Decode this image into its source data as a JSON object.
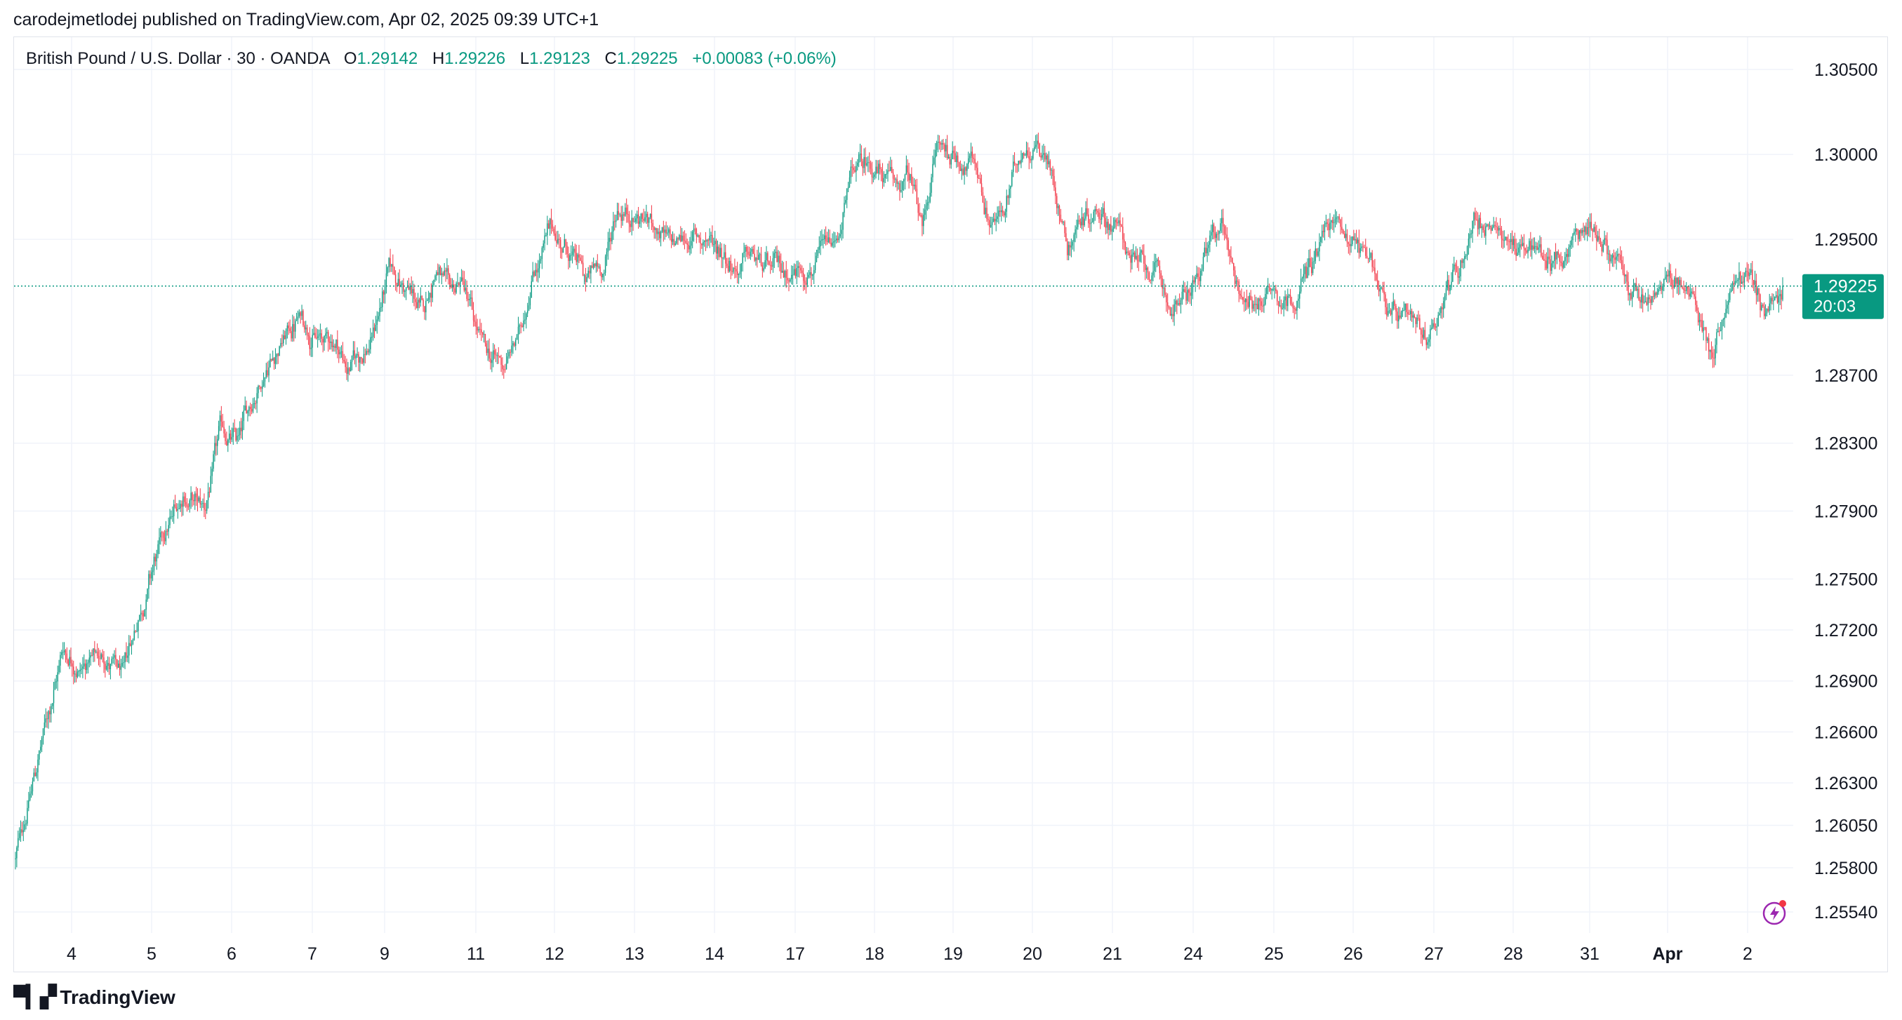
{
  "header": {
    "published": "carodejmetlodej published on TradingView.com, Apr 02, 2025 09:39 UTC+1"
  },
  "legend": {
    "symbol": "British Pound / U.S. Dollar · 30 · OANDA",
    "o_label": "O",
    "o_value": "1.29142",
    "h_label": "H",
    "h_value": "1.29226",
    "l_label": "L",
    "l_value": "1.29123",
    "c_label": "C",
    "c_value": "1.29225",
    "change": "+0.00083 (+0.06%)"
  },
  "price_badge": {
    "price": "1.29225",
    "countdown": "20:03"
  },
  "footer": {
    "brand": "TradingView"
  },
  "colors": {
    "up": "#089981",
    "down": "#f23645",
    "grid": "#f0f3fa",
    "badge": "#089981"
  },
  "icons": {
    "brand_logo": "tradingview-logo-icon",
    "alert": "lightning-bolt-icon"
  },
  "chart_data": {
    "type": "candlestick",
    "title": "",
    "ylim": [
      1.2535,
      1.3065
    ],
    "current_price": 1.29225,
    "y_ticks": [
      "1.30500",
      "1.30000",
      "1.29500",
      "1.28700",
      "1.28300",
      "1.27900",
      "1.27500",
      "1.27200",
      "1.26900",
      "1.26600",
      "1.26300",
      "1.26050",
      "1.25800",
      "1.25540"
    ],
    "x_ticks": [
      "4",
      "5",
      "6",
      "7",
      "9",
      "11",
      "12",
      "13",
      "14",
      "17",
      "18",
      "19",
      "20",
      "21",
      "24",
      "25",
      "26",
      "27",
      "28",
      "31",
      "Apr",
      "2"
    ],
    "x_tick_bold": [
      "Apr"
    ],
    "price_path": [
      [
        0,
        1.2585
      ],
      [
        0.8,
        1.264
      ],
      [
        1.8,
        1.271
      ],
      [
        2.5,
        1.27
      ],
      [
        3.4,
        1.2705
      ],
      [
        4.1,
        1.269
      ],
      [
        4.7,
        1.273
      ],
      [
        5.3,
        1.276
      ],
      [
        6.4,
        1.28
      ],
      [
        7.2,
        1.279
      ],
      [
        7.8,
        1.2835
      ],
      [
        8.5,
        1.283
      ],
      [
        9.0,
        1.2855
      ],
      [
        9.6,
        1.288
      ],
      [
        10.3,
        1.2895
      ],
      [
        10.9,
        1.2905
      ],
      [
        11.6,
        1.289
      ],
      [
        12.2,
        1.289
      ],
      [
        12.6,
        1.2875
      ],
      [
        13.0,
        1.288
      ],
      [
        13.5,
        1.289
      ],
      [
        14.2,
        1.293
      ],
      [
        14.9,
        1.292
      ],
      [
        15.5,
        1.2905
      ],
      [
        16.0,
        1.2935
      ],
      [
        16.5,
        1.2915
      ],
      [
        17.0,
        1.2925
      ],
      [
        17.4,
        1.29
      ],
      [
        17.9,
        1.288
      ],
      [
        18.6,
        1.2875
      ],
      [
        19.2,
        1.2895
      ],
      [
        19.7,
        1.2935
      ],
      [
        20.4,
        1.2955
      ],
      [
        21.2,
        1.294
      ],
      [
        21.7,
        1.2925
      ],
      [
        22.4,
        1.2935
      ],
      [
        22.9,
        1.297
      ],
      [
        23.6,
        1.2965
      ],
      [
        24.3,
        1.296
      ],
      [
        24.9,
        1.2945
      ],
      [
        25.6,
        1.295
      ],
      [
        26.3,
        1.295
      ],
      [
        26.9,
        1.2945
      ],
      [
        27.4,
        1.2935
      ],
      [
        28.0,
        1.294
      ],
      [
        28.6,
        1.293
      ],
      [
        29.3,
        1.293
      ],
      [
        30.0,
        1.2935
      ],
      [
        30.6,
        1.294
      ],
      [
        31.2,
        1.2945
      ],
      [
        31.9,
        1.299
      ],
      [
        32.6,
        1.2995
      ],
      [
        33.4,
        1.298
      ],
      [
        34.0,
        1.2985
      ],
      [
        34.5,
        1.2955
      ],
      [
        35.0,
        1.3005
      ],
      [
        35.7,
        1.3
      ],
      [
        36.5,
        1.2995
      ],
      [
        37.0,
        1.2965
      ],
      [
        37.6,
        1.2965
      ],
      [
        38.3,
        1.3005
      ],
      [
        38.9,
        1.301
      ],
      [
        39.5,
        1.2985
      ],
      [
        40.0,
        1.295
      ],
      [
        40.6,
        1.2965
      ],
      [
        41.3,
        1.297
      ],
      [
        42.0,
        1.2955
      ],
      [
        42.6,
        1.2935
      ],
      [
        43.3,
        1.293
      ],
      [
        43.9,
        1.291
      ],
      [
        44.5,
        1.2915
      ],
      [
        45.2,
        1.2935
      ],
      [
        45.9,
        1.296
      ],
      [
        46.5,
        1.2925
      ],
      [
        47.1,
        1.291
      ],
      [
        47.8,
        1.2925
      ],
      [
        48.4,
        1.2915
      ],
      [
        49.1,
        1.293
      ],
      [
        49.8,
        1.2955
      ],
      [
        50.4,
        1.296
      ],
      [
        51.0,
        1.295
      ],
      [
        51.7,
        1.2935
      ],
      [
        52.3,
        1.2905
      ],
      [
        53.0,
        1.2895
      ],
      [
        53.6,
        1.2885
      ],
      [
        54.3,
        1.292
      ],
      [
        54.9,
        1.2935
      ],
      [
        55.5,
        1.2965
      ],
      [
        56.2,
        1.295
      ],
      [
        56.9,
        1.295
      ],
      [
        57.5,
        1.2945
      ],
      [
        58.2,
        1.294
      ],
      [
        58.8,
        1.294
      ],
      [
        59.4,
        1.2955
      ],
      [
        60.0,
        1.296
      ],
      [
        60.7,
        1.294
      ],
      [
        61.3,
        1.292
      ],
      [
        62.0,
        1.291
      ],
      [
        62.6,
        1.292
      ],
      [
        63.2,
        1.2925
      ],
      [
        63.9,
        1.291
      ],
      [
        64.5,
        1.2885
      ],
      [
        65.2,
        1.292
      ],
      [
        65.8,
        1.293
      ],
      [
        66.5,
        1.291
      ],
      [
        67.2,
        1.2915
      ]
    ],
    "n_candles": 1340
  }
}
